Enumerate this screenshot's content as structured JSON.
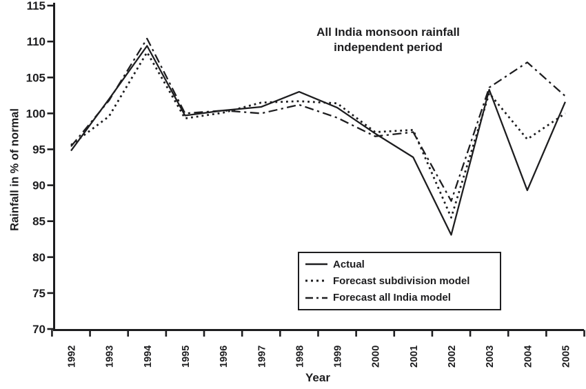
{
  "title": {
    "line1": "All India monsoon rainfall",
    "line2": "independent period"
  },
  "axes": {
    "xlabel": "Year",
    "ylabel": "Rainfall in % of normal"
  },
  "chart_data": {
    "type": "line",
    "title": "All India monsoon rainfall independent period",
    "xlabel": "Year",
    "ylabel": "Rainfall in % of normal",
    "ylim": [
      70,
      115
    ],
    "yticks": [
      70,
      75,
      80,
      85,
      90,
      95,
      100,
      105,
      110,
      115
    ],
    "x": [
      1992,
      1993,
      1994,
      1995,
      1996,
      1997,
      1998,
      1999,
      2000,
      2001,
      2002,
      2003,
      2004,
      2005
    ],
    "series": [
      {
        "name": "Actual",
        "style": "solid",
        "values": [
          94.8,
          102.0,
          109.4,
          99.7,
          100.4,
          100.9,
          103.0,
          100.8,
          97.2,
          93.9,
          83.1,
          103.3,
          89.3,
          101.6
        ]
      },
      {
        "name": "Forecast subdivision model",
        "style": "dotted",
        "values": [
          95.6,
          99.6,
          108.5,
          99.3,
          100.1,
          101.5,
          101.7,
          101.4,
          97.4,
          97.7,
          85.5,
          102.8,
          96.4,
          100.0
        ]
      },
      {
        "name": "Forecast all India model",
        "style": "dashdot",
        "values": [
          95.4,
          101.8,
          110.4,
          100.0,
          100.4,
          100.0,
          101.2,
          99.4,
          96.8,
          97.4,
          87.8,
          103.6,
          107.1,
          102.4
        ]
      }
    ],
    "legend_position": "inside-bottom-center",
    "grid": false,
    "line_color": "#1d1d1f",
    "background": "#ffffff"
  }
}
